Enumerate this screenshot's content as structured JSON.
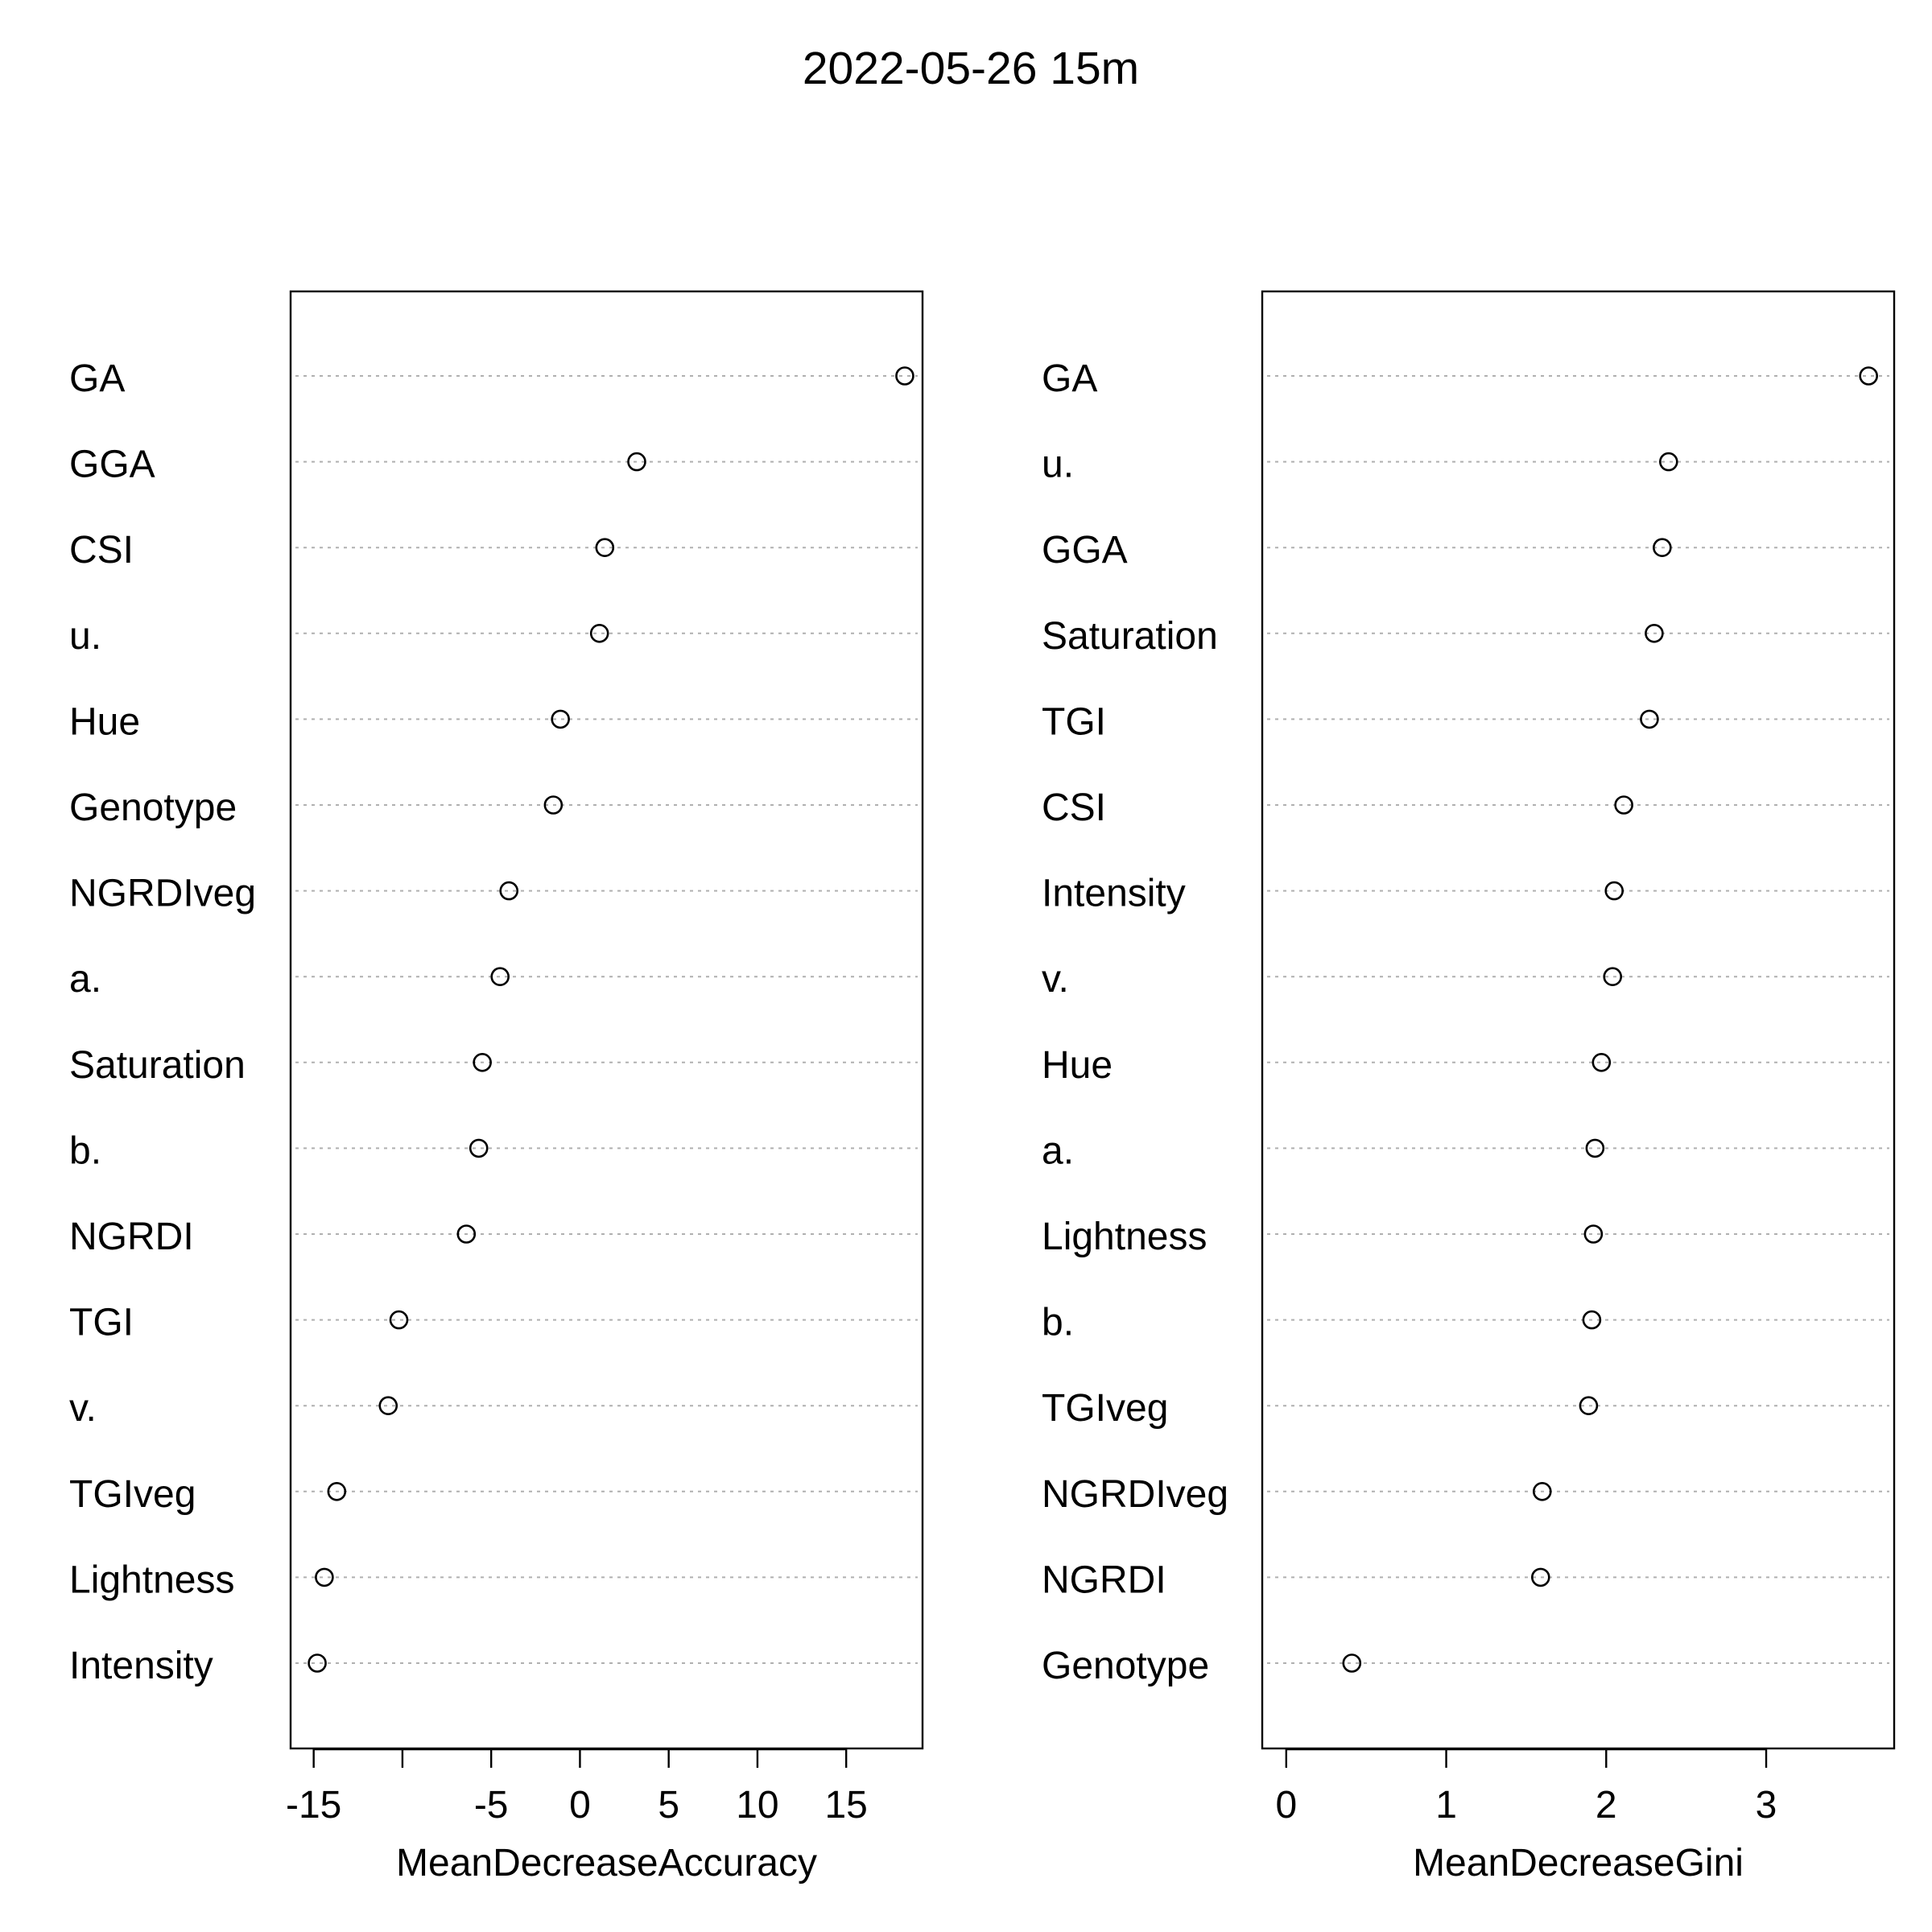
{
  "title": "2022-05-26 15m",
  "chart_data": [
    {
      "type": "scatter",
      "subtype": "dotchart",
      "xlabel": "MeanDecreaseAccuracy",
      "xlim": [
        -16.3,
        19.3
      ],
      "xticks": [
        -15,
        -10,
        -5,
        0,
        5,
        10,
        15
      ],
      "xtick_labels": [
        "-15",
        "",
        "-5",
        "0",
        "5",
        "10",
        "15"
      ],
      "grid": "dotted horizontal",
      "categories": [
        "GA",
        "GGA",
        "CSI",
        "u.",
        "Hue",
        "Genotype",
        "NGRDIveg",
        "a.",
        "Saturation",
        "b.",
        "NGRDI",
        "TGI",
        "v.",
        "TGIveg",
        "Lightness",
        "Intensity"
      ],
      "values": [
        18.3,
        3.2,
        1.4,
        1.1,
        -1.1,
        -1.5,
        -4.0,
        -4.5,
        -5.5,
        -5.7,
        -6.4,
        -10.2,
        -10.8,
        -13.7,
        -14.4,
        -14.8
      ]
    },
    {
      "type": "scatter",
      "subtype": "dotchart",
      "xlabel": "MeanDecreaseGini",
      "xlim": [
        -0.15,
        3.8
      ],
      "xticks": [
        0,
        1,
        2,
        3
      ],
      "xtick_labels": [
        "0",
        "1",
        "2",
        "3"
      ],
      "grid": "dotted horizontal",
      "categories": [
        "GA",
        "u.",
        "GGA",
        "Saturation",
        "TGI",
        "CSI",
        "Intensity",
        "v.",
        "Hue",
        "a.",
        "Lightness",
        "b.",
        "TGIveg",
        "NGRDIveg",
        "NGRDI",
        "Genotype"
      ],
      "values": [
        3.64,
        2.39,
        2.35,
        2.3,
        2.27,
        2.11,
        2.05,
        2.04,
        1.97,
        1.93,
        1.92,
        1.91,
        1.89,
        1.6,
        1.59,
        0.41
      ]
    }
  ]
}
